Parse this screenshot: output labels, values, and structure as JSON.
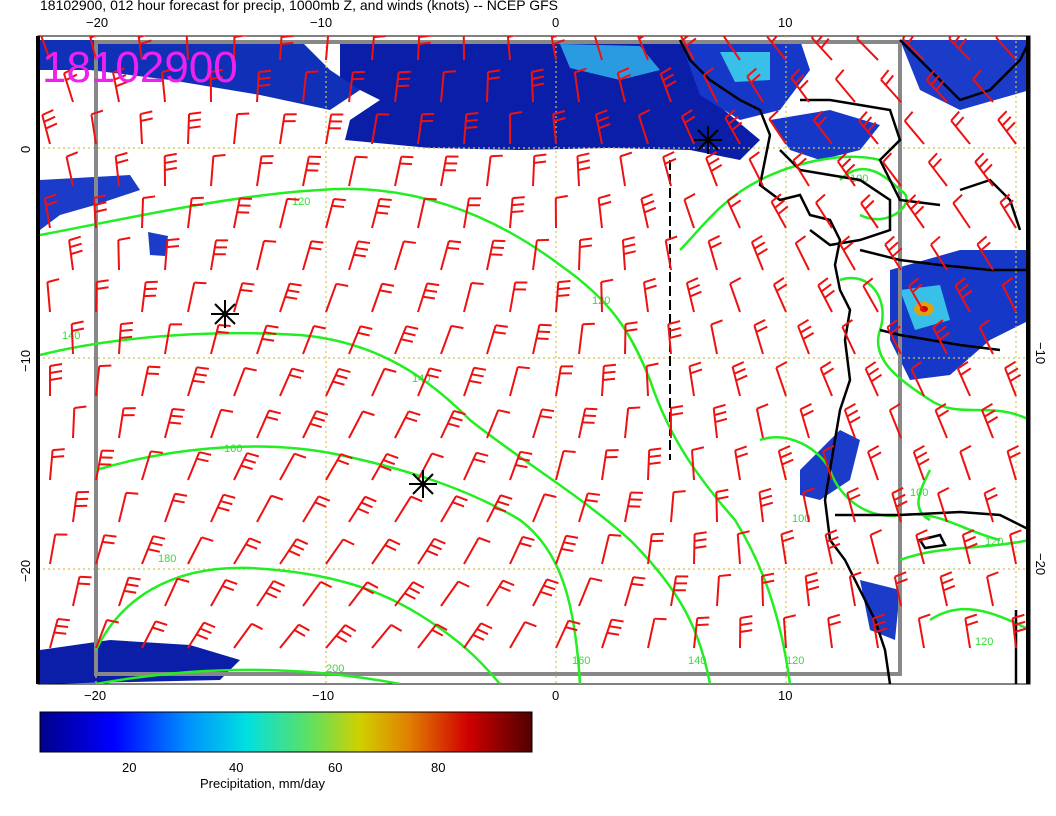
{
  "title": "18102900, 012 hour forecast for precip, 1000mb Z, and winds (knots) -- NCEP GFS",
  "stamp": "18102900",
  "colors": {
    "wind_barb": "#ee1111",
    "height_contour": "#22ee22",
    "coastline": "#000000",
    "grid": "#d4c44a",
    "frame": "#888888"
  },
  "axes": {
    "x_ticks_top": [
      "−20",
      "−10",
      "0",
      "10"
    ],
    "x_ticks_bottom": [
      "−20",
      "−10",
      "0",
      "10"
    ],
    "y_ticks_left": [
      "0",
      "−10",
      "−20"
    ],
    "y_ticks_right": [
      "−10",
      "−20"
    ]
  },
  "contour_labels": [
    "120",
    "140",
    "160",
    "180",
    "200",
    "120",
    "140",
    "160",
    "120",
    "100",
    "100",
    "100",
    "120",
    "120",
    "140"
  ],
  "colorbar": {
    "title": "Precipitation, mm/day",
    "ticks": [
      "20",
      "40",
      "60",
      "80"
    ],
    "colormap": [
      "#00008b",
      "#0000ff",
      "#0080ff",
      "#00e0e0",
      "#40e080",
      "#c0d000",
      "#e08000",
      "#d00000",
      "#600000"
    ]
  },
  "icons": {
    "low_center": "asterisk-icon",
    "barb": "wind-barb-icon"
  }
}
